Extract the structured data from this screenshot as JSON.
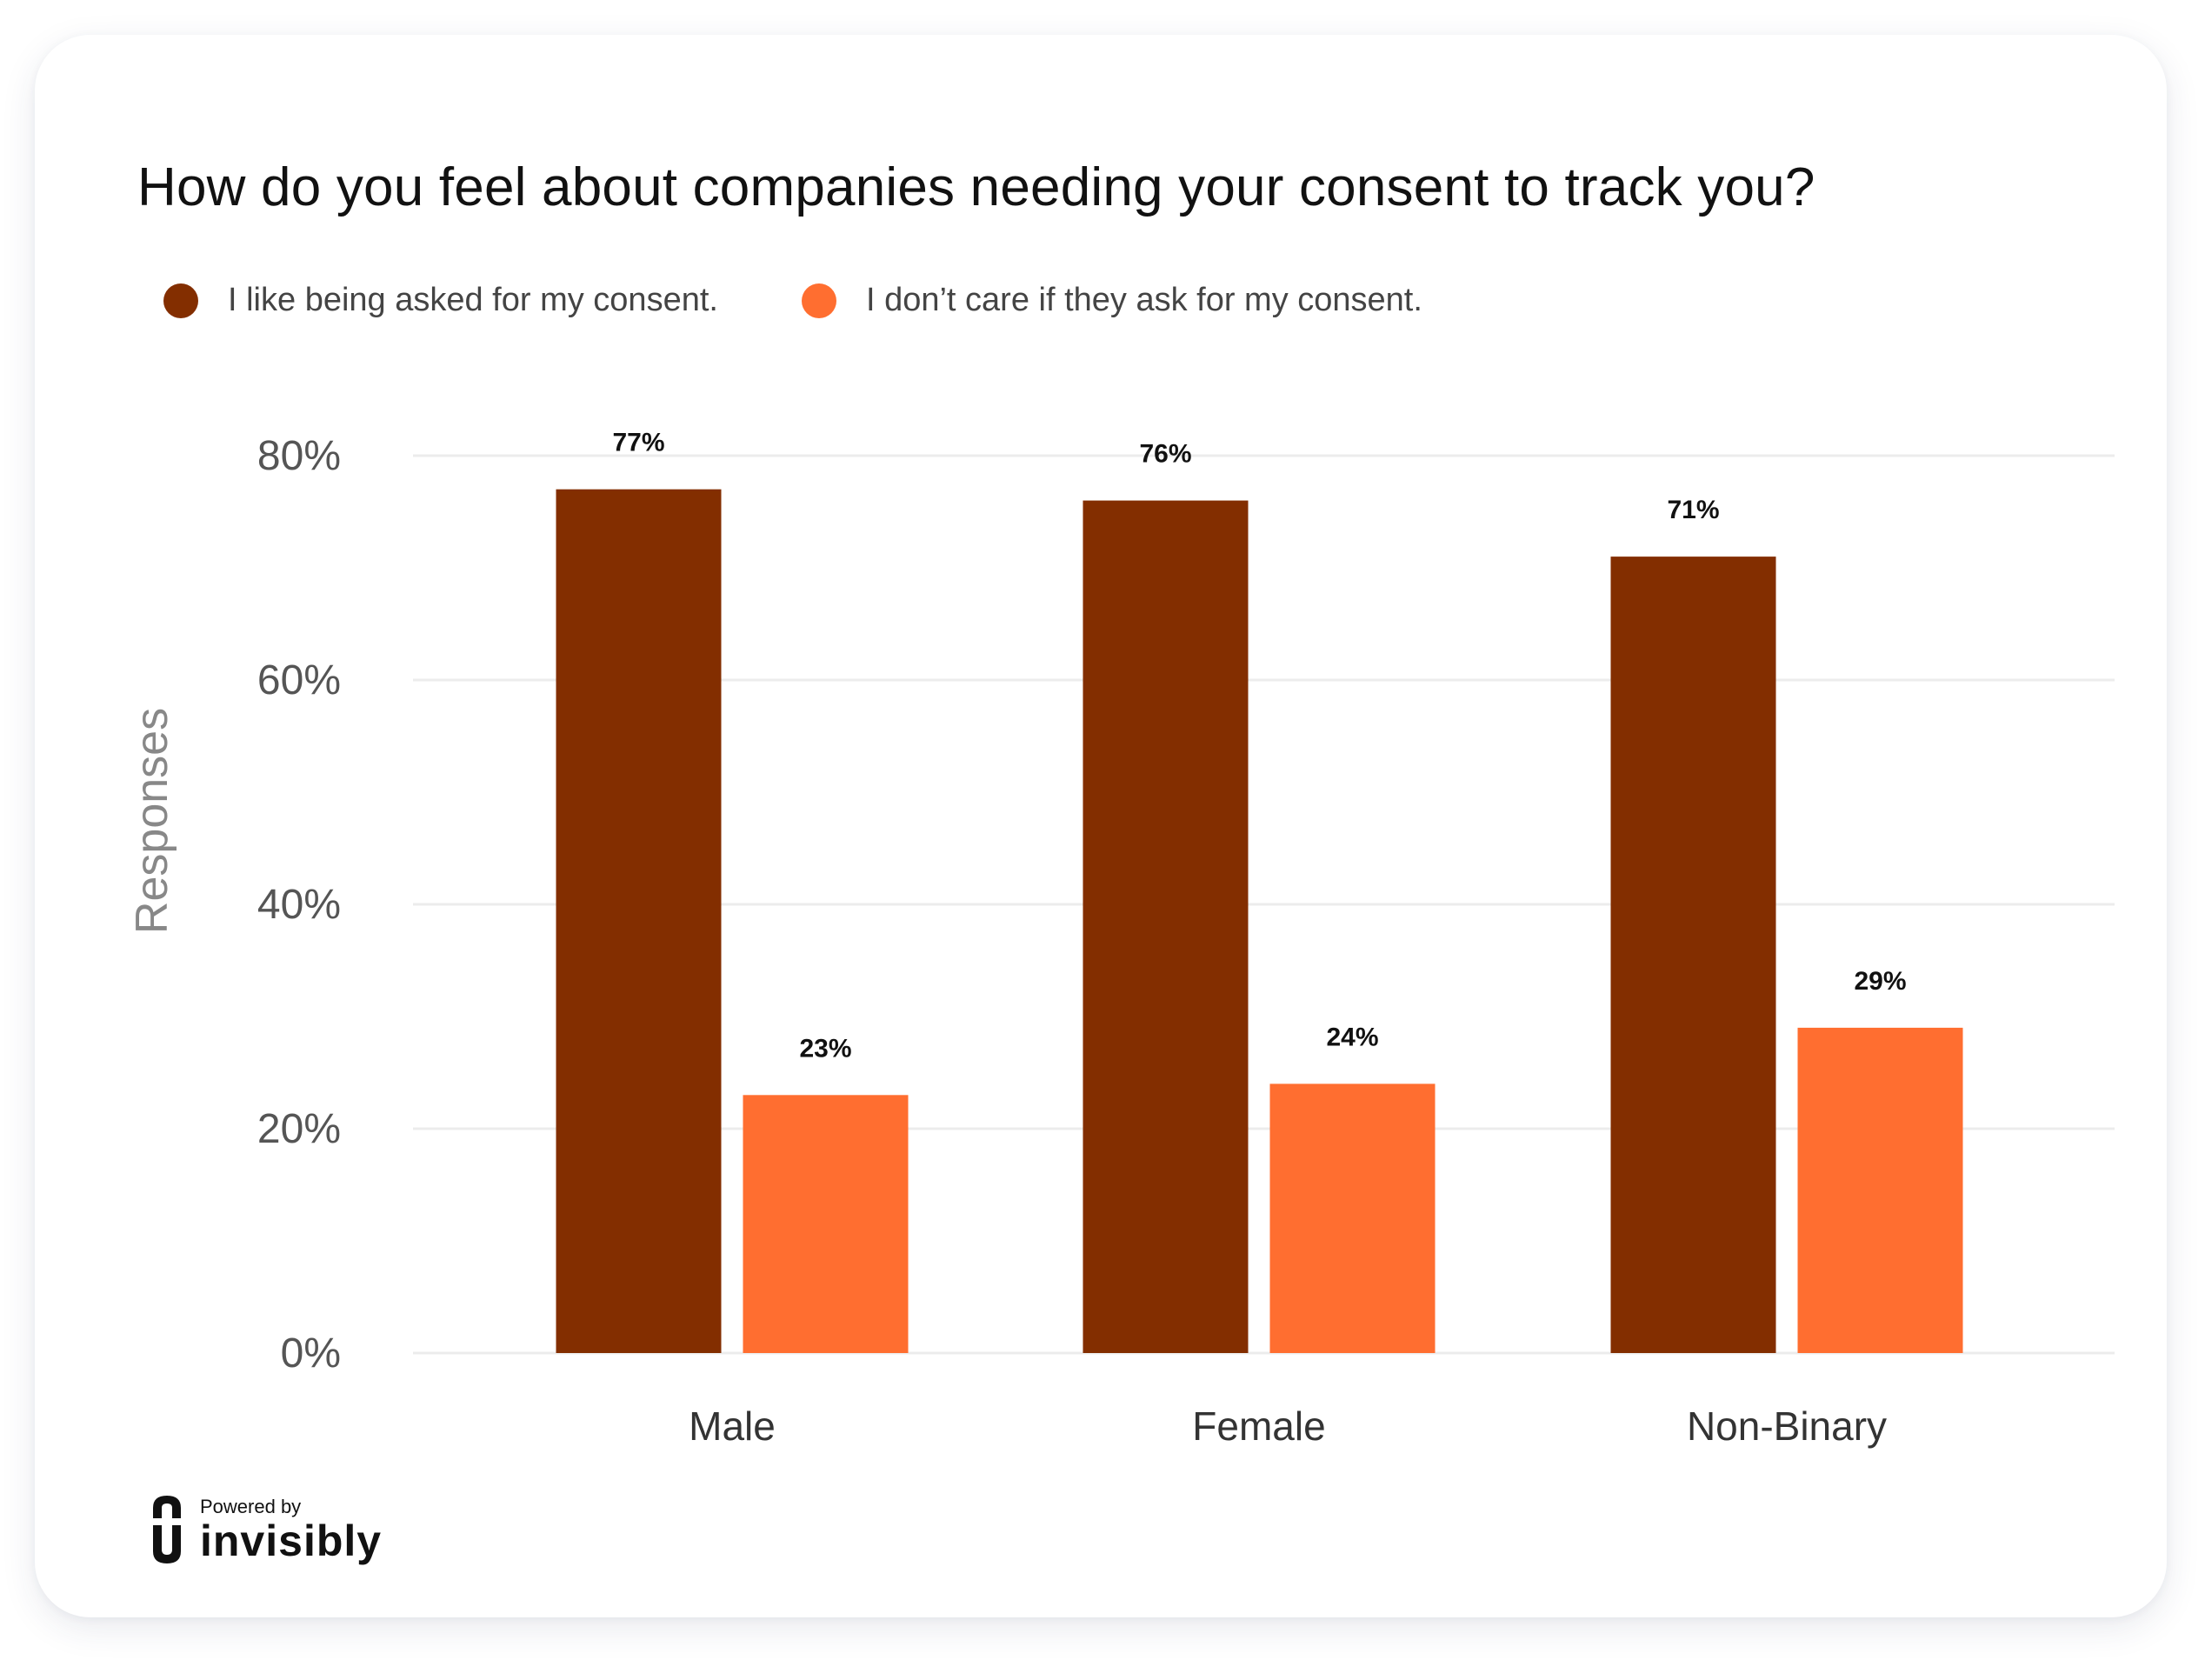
{
  "chart_data": {
    "type": "bar",
    "title": "How do you feel about companies needing your consent to track you?",
    "xlabel": "",
    "ylabel": "Responses",
    "categories": [
      "Male",
      "Female",
      "Non-Binary"
    ],
    "series": [
      {
        "name": "I like being asked for my consent.",
        "values": [
          77,
          76,
          71
        ],
        "labels": [
          "77%",
          "76%",
          "71%"
        ],
        "color": "#832E00"
      },
      {
        "name": "I don’t care if they ask for my consent.",
        "values": [
          23,
          24,
          29
        ],
        "labels": [
          "23%",
          "24%",
          "29%"
        ],
        "color": "#FF6E30"
      }
    ],
    "ylim": [
      0,
      80
    ],
    "yticks": [
      0,
      20,
      40,
      60,
      80
    ],
    "yticklabels": [
      "0%",
      "20%",
      "40%",
      "60%",
      "80%"
    ],
    "grid": true,
    "legend": "top-left"
  },
  "branding": {
    "powered_by": "Powered by",
    "brand": "invisibly"
  }
}
